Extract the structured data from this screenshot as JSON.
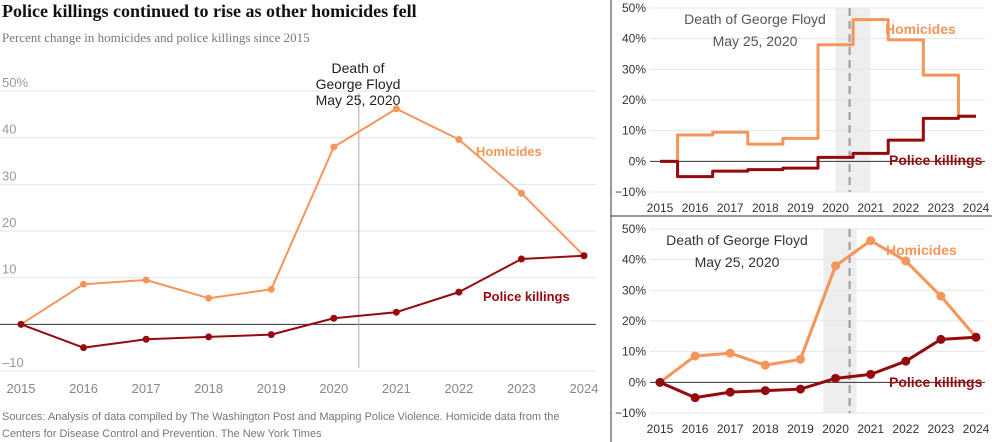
{
  "title": "Police killings continued to rise as other homicides fell",
  "subtitle": "Percent change in homicides and police killings since 2015",
  "source": "Sources: Analysis of data compiled by The Washington Post and Mapping Police Violence. Homicide data from the Centers for Disease Control and Prevention.  The New York Times",
  "colors": {
    "homicides": "#f4955a",
    "police_killings": "#950a0f",
    "text": "#222222",
    "muted": "#888888",
    "grid": "#e6e6e6",
    "shade": "#eeeeee"
  },
  "chart_data": [
    {
      "type": "line",
      "x": [
        2015,
        2016,
        2017,
        2018,
        2019,
        2020,
        2021,
        2022,
        2023,
        2024
      ],
      "series": [
        {
          "name": "Homicides",
          "values": [
            0,
            8.6,
            9.5,
            5.6,
            7.5,
            38,
            46.2,
            39.6,
            28.1,
            14.7
          ]
        },
        {
          "name": "Police killings",
          "values": [
            0,
            -5,
            -3.2,
            -2.7,
            -2.2,
            1.3,
            2.6,
            6.9,
            14,
            14.7
          ]
        }
      ],
      "ylim": [
        -10,
        50
      ],
      "ytick_labels": [
        "–10",
        "",
        "10",
        "20",
        "30",
        "40",
        "50%"
      ],
      "annotation": [
        "Death of",
        "George Floyd",
        "May 25, 2020"
      ],
      "grid": true
    },
    {
      "type": "line",
      "step": true,
      "x": [
        2015,
        2016,
        2017,
        2018,
        2019,
        2020,
        2021,
        2022,
        2023,
        2024
      ],
      "series": [
        {
          "name": "Homicides",
          "values": [
            0,
            8.6,
            9.5,
            5.6,
            7.5,
            38,
            46.2,
            39.6,
            28.1,
            14.7
          ]
        },
        {
          "name": "Police killings",
          "values": [
            0,
            -5,
            -3.2,
            -2.7,
            -2.2,
            1.3,
            2.6,
            6.9,
            14,
            14.7
          ]
        }
      ],
      "ylim": [
        -10,
        50
      ],
      "ytick_labels": [
        "−10%",
        "0%",
        "10%",
        "20%",
        "30%",
        "40%",
        "50%"
      ],
      "annotation": [
        "Death of George Floyd",
        "May 25, 2020"
      ],
      "grid": true
    },
    {
      "type": "line",
      "x": [
        2015,
        2016,
        2017,
        2018,
        2019,
        2020,
        2021,
        2022,
        2023,
        2024
      ],
      "series": [
        {
          "name": "Homicides",
          "values": [
            0,
            8.6,
            9.5,
            5.6,
            7.5,
            38,
            46.2,
            39.6,
            28.1,
            14.7
          ]
        },
        {
          "name": "Police killings",
          "values": [
            0,
            -5,
            -3.2,
            -2.7,
            -2.2,
            1.3,
            2.6,
            6.9,
            14,
            14.7
          ]
        }
      ],
      "ylim": [
        -10,
        50
      ],
      "ytick_labels": [
        "−10%",
        "0%",
        "10%",
        "20%",
        "30%",
        "40%",
        "50%"
      ],
      "annotation": [
        "Death of George Floyd",
        "May 25, 2020"
      ],
      "grid": true
    }
  ]
}
